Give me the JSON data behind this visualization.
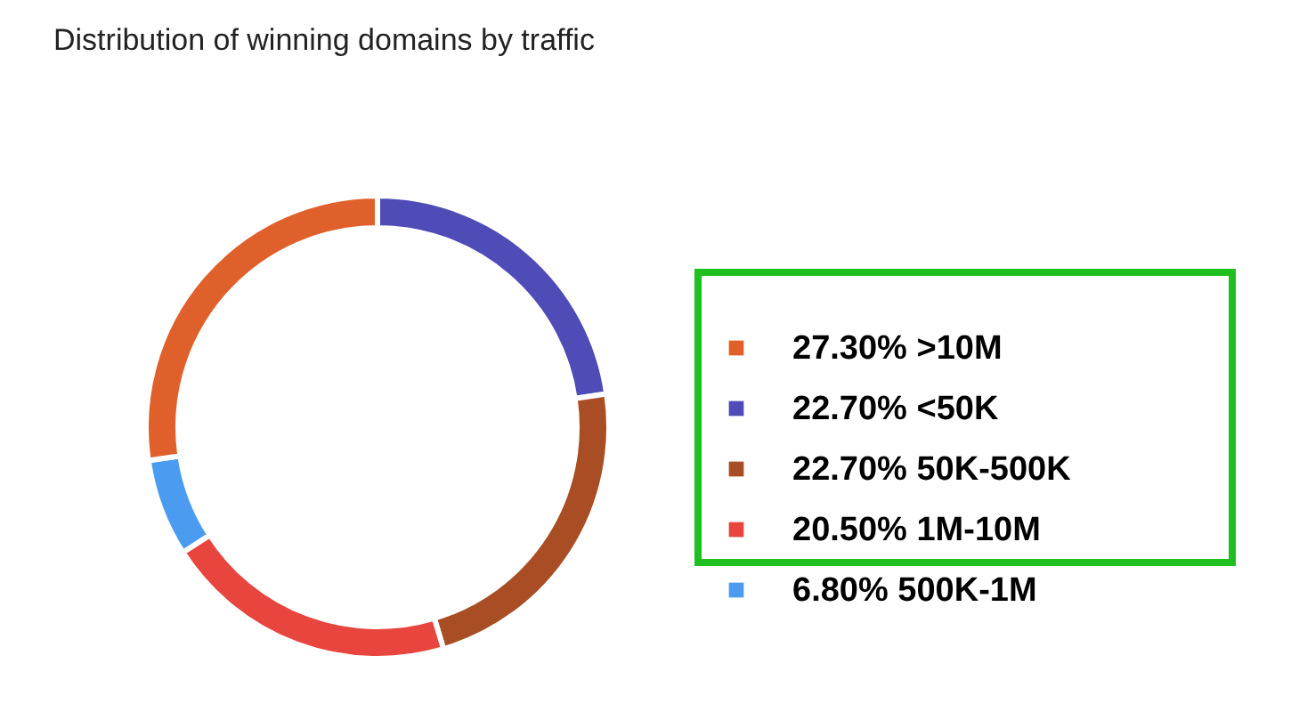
{
  "chart_data": {
    "type": "donut",
    "title": "Distribution of winning domains by traffic",
    "categories": [
      "<50K",
      "50K-500K",
      "1M-10M",
      "500K-1M",
      ">10M"
    ],
    "values": [
      22.7,
      22.7,
      20.5,
      6.8,
      27.3
    ],
    "value_labels": [
      "22.70%",
      "22.70%",
      "20.50%",
      "6.80%",
      "27.30%"
    ],
    "colors": [
      "#4f4bb7",
      "#a94e24",
      "#e8453f",
      "#4b9cf0",
      "#e0602c"
    ],
    "legend": "right"
  }
}
